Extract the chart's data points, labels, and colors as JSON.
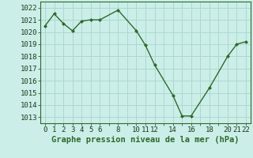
{
  "x": [
    0,
    1,
    2,
    3,
    4,
    5,
    6,
    8,
    10,
    11,
    12,
    14,
    15,
    16,
    18,
    20,
    21,
    22
  ],
  "y": [
    1020.5,
    1021.5,
    1020.7,
    1020.1,
    1020.9,
    1021.0,
    1021.0,
    1021.8,
    1020.1,
    1018.9,
    1017.3,
    1014.8,
    1013.1,
    1013.1,
    1015.4,
    1018.0,
    1019.0,
    1019.2
  ],
  "line_color": "#2d6a2d",
  "marker": "D",
  "marker_size": 2.0,
  "bg_color": "#cceee8",
  "grid_color": "#aad8d0",
  "xlabel": "Graphe pression niveau de la mer (hPa)",
  "xlabel_fontsize": 7.5,
  "ylim": [
    1012.5,
    1022.5
  ],
  "xlim": [
    -0.5,
    22.5
  ],
  "yticks": [
    1013,
    1014,
    1015,
    1016,
    1017,
    1018,
    1019,
    1020,
    1021,
    1022
  ],
  "show_xticks": [
    0,
    1,
    2,
    3,
    4,
    5,
    6,
    8,
    10,
    11,
    12,
    14,
    16,
    18,
    20,
    21,
    22
  ],
  "tick_fontsize": 6.5,
  "line_width": 1.0
}
